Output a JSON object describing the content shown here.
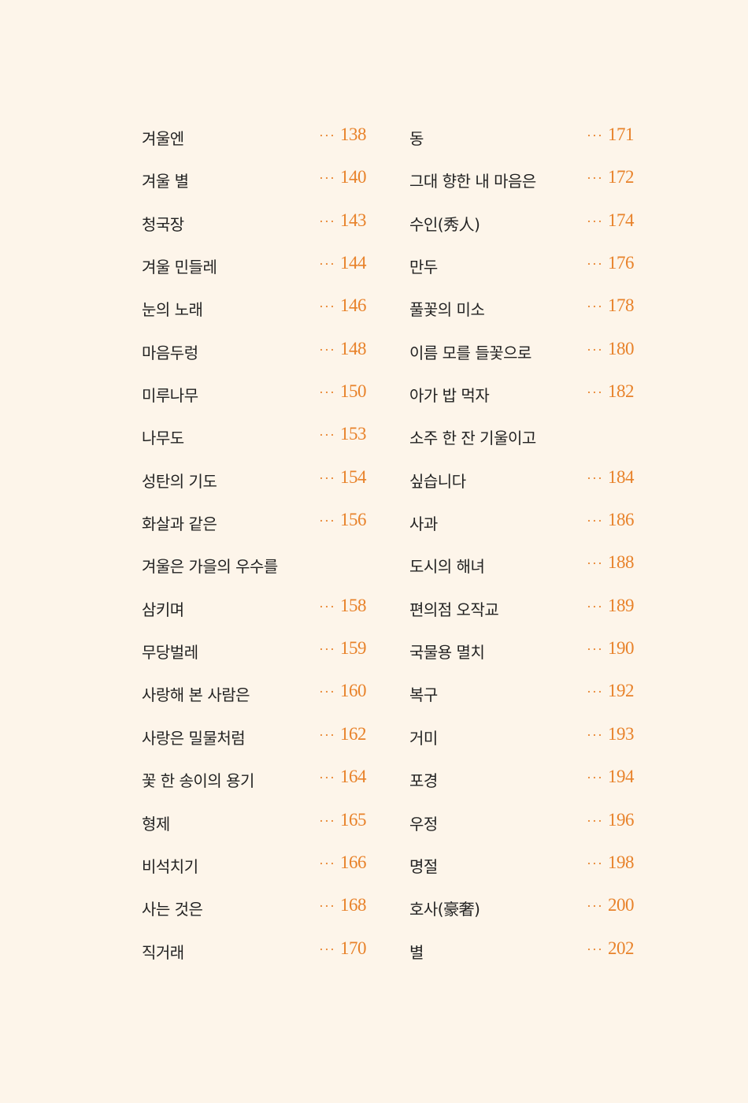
{
  "colors": {
    "background": "#fdf5ea",
    "text": "#222222",
    "page_number": "#e8822a"
  },
  "leader": "···",
  "toc": {
    "left": [
      {
        "title": "겨울엔",
        "page": "138"
      },
      {
        "title": "겨울 별",
        "page": "140"
      },
      {
        "title": "청국장",
        "page": "143"
      },
      {
        "title": "겨울 민들레",
        "page": "144"
      },
      {
        "title": "눈의 노래",
        "page": "146"
      },
      {
        "title": "마음두렁",
        "page": "148"
      },
      {
        "title": "미루나무",
        "page": "150"
      },
      {
        "title": "나무도",
        "page": "153"
      },
      {
        "title": "성탄의 기도",
        "page": "154"
      },
      {
        "title": "화살과 같은",
        "page": "156"
      },
      {
        "title": "겨울은 가을의 우수를",
        "page": ""
      },
      {
        "title": "삼키며",
        "page": "158"
      },
      {
        "title": "무당벌레",
        "page": "159"
      },
      {
        "title": "사랑해 본 사람은",
        "page": "160"
      },
      {
        "title": "사랑은 밀물처럼",
        "page": "162"
      },
      {
        "title": "꽃 한 송이의 용기",
        "page": "164"
      },
      {
        "title": "형제",
        "page": "165"
      },
      {
        "title": "비석치기",
        "page": "166"
      },
      {
        "title": "사는 것은",
        "page": "168"
      },
      {
        "title": "직거래",
        "page": "170"
      }
    ],
    "right": [
      {
        "title": "동",
        "page": "171"
      },
      {
        "title": "그대 향한 내 마음은",
        "page": "172"
      },
      {
        "title": "수인(秀人)",
        "page": "174"
      },
      {
        "title": "만두",
        "page": "176"
      },
      {
        "title": "풀꽃의 미소",
        "page": "178"
      },
      {
        "title": "이름 모를 들꽃으로",
        "page": "180"
      },
      {
        "title": "아가 밥 먹자",
        "page": "182"
      },
      {
        "title": "소주 한 잔 기울이고",
        "page": ""
      },
      {
        "title": "싶습니다",
        "page": "184"
      },
      {
        "title": "사과",
        "page": "186"
      },
      {
        "title": "도시의 해녀",
        "page": "188"
      },
      {
        "title": "편의점 오작교",
        "page": "189"
      },
      {
        "title": "국물용 멸치",
        "page": "190"
      },
      {
        "title": "복구",
        "page": "192"
      },
      {
        "title": "거미",
        "page": "193"
      },
      {
        "title": "포경",
        "page": "194"
      },
      {
        "title": "우정",
        "page": "196"
      },
      {
        "title": "명절",
        "page": "198"
      },
      {
        "title": "호사(豪奢)",
        "page": "200"
      },
      {
        "title": "별",
        "page": "202"
      }
    ]
  }
}
